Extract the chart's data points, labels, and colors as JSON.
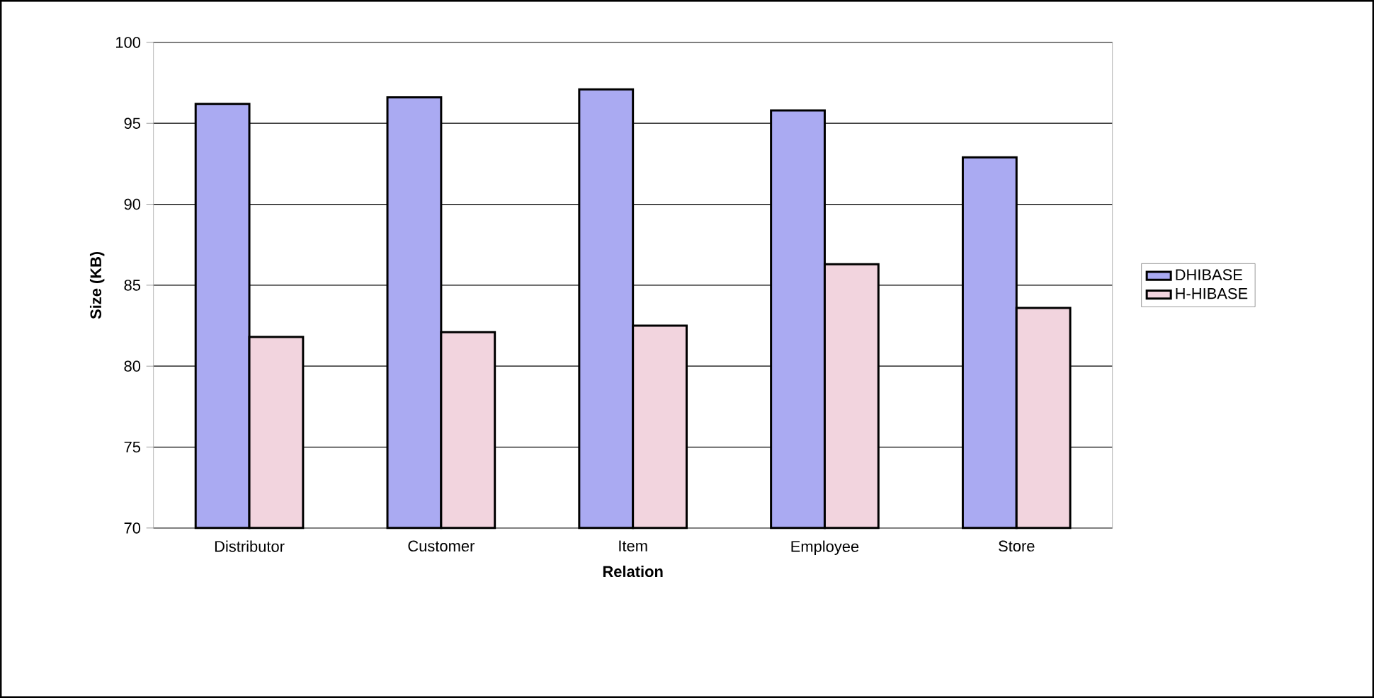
{
  "chart_data": {
    "type": "bar",
    "xlabel": "Relation",
    "ylabel": "Size (KB)",
    "categories": [
      "Distributor",
      "Customer",
      "Item",
      "Employee",
      "Store"
    ],
    "series": [
      {
        "name": "DHIBASE",
        "color": "#aaaaf2",
        "values": [
          96.2,
          96.6,
          97.1,
          95.8,
          92.9
        ]
      },
      {
        "name": "H-HIBASE",
        "color": "#f2d4de",
        "values": [
          81.8,
          82.1,
          82.5,
          86.3,
          83.6
        ]
      }
    ],
    "ylim": [
      70,
      100
    ],
    "yticks": [
      70,
      75,
      80,
      85,
      90,
      95,
      100
    ],
    "grid": "y",
    "legend": "right"
  }
}
